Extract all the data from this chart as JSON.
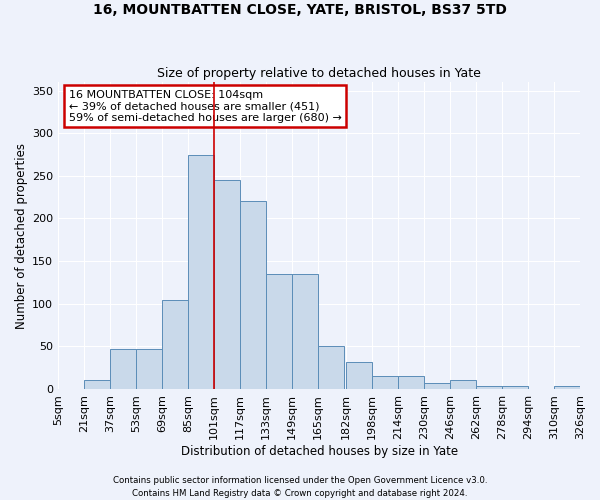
{
  "title1": "16, MOUNTBATTEN CLOSE, YATE, BRISTOL, BS37 5TD",
  "title2": "Size of property relative to detached houses in Yate",
  "xlabel": "Distribution of detached houses by size in Yate",
  "ylabel": "Number of detached properties",
  "footer1": "Contains HM Land Registry data © Crown copyright and database right 2024.",
  "footer2": "Contains public sector information licensed under the Open Government Licence v3.0.",
  "annotation_line1": "16 MOUNTBATTEN CLOSE: 104sqm",
  "annotation_line2": "← 39% of detached houses are smaller (451)",
  "annotation_line3": "59% of semi-detached houses are larger (680) →",
  "bar_color": "#c9d9ea",
  "bar_edge_color": "#5b8db8",
  "ref_line_color": "#cc0000",
  "ref_line_x": 101,
  "bin_starts": [
    5,
    21,
    37,
    53,
    69,
    85,
    101,
    117,
    133,
    149,
    165,
    182,
    198,
    214,
    230,
    246,
    262,
    278,
    294,
    310
  ],
  "bin_width": 16,
  "bin_labels": [
    "5sqm",
    "21sqm",
    "37sqm",
    "53sqm",
    "69sqm",
    "85sqm",
    "101sqm",
    "117sqm",
    "133sqm",
    "149sqm",
    "165sqm",
    "182sqm",
    "198sqm",
    "214sqm",
    "230sqm",
    "246sqm",
    "262sqm",
    "278sqm",
    "294sqm",
    "310sqm",
    "326sqm"
  ],
  "bar_heights": [
    0,
    10,
    47,
    47,
    104,
    275,
    245,
    220,
    135,
    135,
    50,
    32,
    15,
    15,
    7,
    10,
    3,
    4,
    0,
    4
  ],
  "ylim": [
    0,
    360
  ],
  "yticks": [
    0,
    50,
    100,
    150,
    200,
    250,
    300,
    350
  ],
  "xlim_left": 5,
  "xlim_right": 326,
  "background_color": "#eef2fb",
  "grid_color": "#ffffff"
}
